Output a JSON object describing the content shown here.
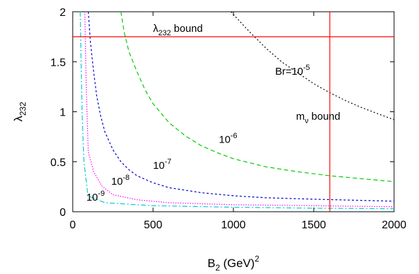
{
  "chart_data": {
    "type": "line",
    "xlabel": {
      "main": "B",
      "sub": "2",
      "rest": " (GeV)",
      "sup": "2"
    },
    "ylabel": {
      "main": "λ",
      "sub": "232"
    },
    "xlim": [
      0,
      2000
    ],
    "ylim": [
      0,
      2
    ],
    "xticks": [
      {
        "value": 0,
        "label": "0"
      },
      {
        "value": 500,
        "label": "500"
      },
      {
        "value": 1000,
        "label": "1000"
      },
      {
        "value": 1500,
        "label": "1500"
      },
      {
        "value": 2000,
        "label": "2000"
      }
    ],
    "yticks": [
      {
        "value": 0,
        "label": "0"
      },
      {
        "value": 0.5,
        "label": "0.5"
      },
      {
        "value": 1,
        "label": "1"
      },
      {
        "value": 1.5,
        "label": "1.5"
      },
      {
        "value": 2,
        "label": "2"
      }
    ],
    "grid": false,
    "legend": "none",
    "bounds": [
      {
        "label_main": "λ",
        "label_sub": "232",
        "label_rest": " bound",
        "orientation": "horizontal",
        "value": 1.75,
        "color": "#ff0000",
        "label_at": [
          500,
          1.8
        ]
      },
      {
        "label_main": "m",
        "label_sub": "ν",
        "label_rest": " bound",
        "orientation": "vertical",
        "value": 1600,
        "color": "#ff0000",
        "label_at": [
          1390,
          0.92
        ]
      }
    ],
    "series": [
      {
        "label_base": "Br=10",
        "label_exp": "-5",
        "label_at": [
          1260,
          1.37
        ],
        "color": "#000000",
        "dash": "2,3",
        "points": [
          [
            985,
            2.0
          ],
          [
            1100,
            1.8
          ],
          [
            1200,
            1.64
          ],
          [
            1300,
            1.5
          ],
          [
            1400,
            1.39
          ],
          [
            1500,
            1.28
          ],
          [
            1600,
            1.19
          ],
          [
            1700,
            1.11
          ],
          [
            1800,
            1.04
          ],
          [
            1900,
            0.98
          ],
          [
            2000,
            0.92
          ]
        ]
      },
      {
        "label_base": "10",
        "label_exp": "-6",
        "label_at": [
          910,
          0.69
        ],
        "color": "#00cc00",
        "dash": "6,4",
        "points": [
          [
            300,
            2.0
          ],
          [
            320,
            1.8
          ],
          [
            350,
            1.6
          ],
          [
            400,
            1.4
          ],
          [
            450,
            1.22
          ],
          [
            500,
            1.08
          ],
          [
            600,
            0.89
          ],
          [
            700,
            0.76
          ],
          [
            800,
            0.66
          ],
          [
            900,
            0.59
          ],
          [
            1000,
            0.53
          ],
          [
            1200,
            0.45
          ],
          [
            1400,
            0.4
          ],
          [
            1600,
            0.36
          ],
          [
            1800,
            0.33
          ],
          [
            2000,
            0.3
          ]
        ]
      },
      {
        "label_base": "10",
        "label_exp": "-7",
        "label_at": [
          500,
          0.43
        ],
        "color": "#0000cc",
        "dash": "3,3",
        "points": [
          [
            97,
            2.0
          ],
          [
            110,
            1.7
          ],
          [
            130,
            1.4
          ],
          [
            150,
            1.15
          ],
          [
            175,
            0.95
          ],
          [
            200,
            0.8
          ],
          [
            250,
            0.62
          ],
          [
            300,
            0.5
          ],
          [
            350,
            0.42
          ],
          [
            400,
            0.36
          ],
          [
            500,
            0.29
          ],
          [
            600,
            0.24
          ],
          [
            800,
            0.19
          ],
          [
            1000,
            0.16
          ],
          [
            1200,
            0.14
          ],
          [
            1500,
            0.125
          ],
          [
            2000,
            0.105
          ]
        ]
      },
      {
        "label_base": "10",
        "label_exp": "-8",
        "label_at": [
          240,
          0.27
        ],
        "color": "#ff00ff",
        "dash": "1.5,2",
        "points": [
          [
            75,
            2.0
          ],
          [
            85,
            1.2
          ],
          [
            97,
            0.6
          ],
          [
            130,
            0.4
          ],
          [
            180,
            0.26
          ],
          [
            250,
            0.17
          ],
          [
            400,
            0.12
          ],
          [
            600,
            0.09
          ],
          [
            1000,
            0.07
          ],
          [
            1500,
            0.06
          ],
          [
            2000,
            0.05
          ]
        ]
      },
      {
        "label_base": "10",
        "label_exp": "-9",
        "label_at": [
          85,
          0.11
        ],
        "color": "#00cccc",
        "dash": "7,3,2,3",
        "points": [
          [
            47,
            2.0
          ],
          [
            52,
            1.5
          ],
          [
            58,
            1.0
          ],
          [
            70,
            0.5
          ],
          [
            95,
            0.16
          ],
          [
            200,
            0.09
          ],
          [
            500,
            0.06
          ],
          [
            1000,
            0.045
          ],
          [
            1500,
            0.035
          ],
          [
            2000,
            0.03
          ]
        ]
      }
    ]
  }
}
